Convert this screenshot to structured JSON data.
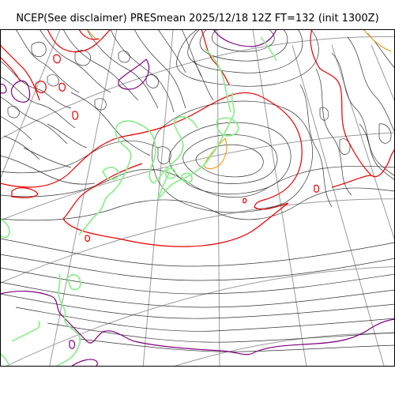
{
  "title": "NCEP(See disclaimer) PRESmean 2025/12/18 12Z FT=132 (init 1300Z)",
  "map": {
    "field": "PRESmean",
    "projection": "polar-stereographic",
    "colors": {
      "isobar": "#333333",
      "contour_red": "#e60000",
      "contour_purple": "#800080",
      "contour_orange": "#f0a020",
      "coastline": "#90ee90",
      "graticule": "#9a9a9a",
      "frame": "#000000"
    }
  }
}
